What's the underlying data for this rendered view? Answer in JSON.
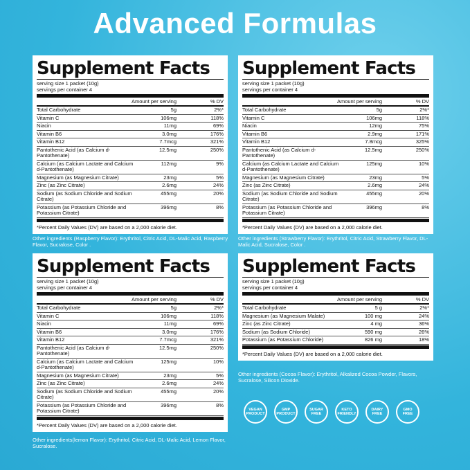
{
  "title": "Advanced Formulas",
  "panels": [
    {
      "heading": "Supplement Facts",
      "serving_size": "serving size 1 packet (10g)",
      "servings": "servings per container 4",
      "col_amount": "Amount per serving",
      "col_dv": "% DV",
      "rows": [
        {
          "name": "Total Carbohydrate",
          "amount": "5g",
          "dv": "2%*"
        },
        {
          "name": "Vitamin  C",
          "amount": "106mg",
          "dv": "118%"
        },
        {
          "name": "Niacin",
          "amount": "11mg",
          "dv": "69%"
        },
        {
          "name": "Vitamin B6",
          "amount": "3.0mg",
          "dv": "176%"
        },
        {
          "name": "Vitamin B12",
          "amount": "7.7mcg",
          "dv": "321%"
        },
        {
          "name": "Pantothenic Acid (as Calcium d-Pantothenate)",
          "amount": "12.5mg",
          "dv": "250%"
        },
        {
          "name": "Calcium (as Calcium Lactate and Calcium d-Pantothenate)",
          "amount": "112mg",
          "dv": "9%"
        },
        {
          "name": "Magnesium (as Magnesium Citrate)",
          "amount": "23mg",
          "dv": "5%"
        },
        {
          "name": "Zinc (as Zinc Citrate)",
          "amount": "2.6mg",
          "dv": "24%"
        },
        {
          "name": "Sodium (as Sodium Chloride and Sodium Citrate)",
          "amount": "455mg",
          "dv": "20%"
        },
        {
          "name": "Potassium (as Potassium Chloride and Potassium Citrate)",
          "amount": "396mg",
          "dv": "8%"
        }
      ],
      "footnote": "*Percent Daily Values (DV) are based on a 2,000 calorie diet.",
      "other": "Other ingredients (Raspberry Flavor): Erythritol, Citric Acid, DL-Malic Acid, Raspberry Flavor, Sucralose, Color ."
    },
    {
      "heading": "Supplement Facts",
      "serving_size": "serving size 1 packet (10g)",
      "servings": "servings per container 4",
      "col_amount": "Amount per serving",
      "col_dv": "% DV",
      "rows": [
        {
          "name": "Total Carbohydrate",
          "amount": "5g",
          "dv": "2%*"
        },
        {
          "name": "Vitamin  C",
          "amount": "106mg",
          "dv": "118%"
        },
        {
          "name": "Niacin",
          "amount": "12mg",
          "dv": "75%"
        },
        {
          "name": "Vitamin B6",
          "amount": "2.9mg",
          "dv": "171%"
        },
        {
          "name": "Vitamin B12",
          "amount": "7.8mcg",
          "dv": "325%"
        },
        {
          "name": "Pantothenic Acid (as Calcium d-Pantothenate)",
          "amount": "12.5mg",
          "dv": "250%"
        },
        {
          "name": "Calcium (as Calcium Lactate and Calcium d-Pantothenate)",
          "amount": "125mg",
          "dv": "10%"
        },
        {
          "name": "Magnesium (as Magnesium Citrate)",
          "amount": "23mg",
          "dv": "5%"
        },
        {
          "name": "Zinc (as Zinc Citrate)",
          "amount": "2.6mg",
          "dv": "24%"
        },
        {
          "name": "Sodium (as Sodium Chloride and Sodium Citrate)",
          "amount": "455mg",
          "dv": "20%"
        },
        {
          "name": "Potassium (as Potassium Chloride and Potassium Citrate)",
          "amount": "396mg",
          "dv": "8%"
        }
      ],
      "footnote": "*Percent Daily Values (DV) are based on a 2,000 calorie diet.",
      "other": "Other ingredients (Strawberry Flavor): Erythritol, Citric Acid, Strawberry Flavor, DL-Malic Acid, Sucralose, Color ."
    },
    {
      "heading": "Supplement Facts",
      "serving_size": "serving size 1 packet (10g)",
      "servings": "servings per container 4",
      "col_amount": "Amount per serving",
      "col_dv": "% DV",
      "rows": [
        {
          "name": "Total Carbohydrate",
          "amount": "5g",
          "dv": "2%*"
        },
        {
          "name": "Vitamin  C",
          "amount": "106mg",
          "dv": "118%"
        },
        {
          "name": "Niacin",
          "amount": "11mg",
          "dv": "69%"
        },
        {
          "name": "Vitamin B6",
          "amount": "3.0mg",
          "dv": "176%"
        },
        {
          "name": "Vitamin B12",
          "amount": "7.7mcg",
          "dv": "321%"
        },
        {
          "name": "Pantothenic Acid (as Calcium d-Pantothenate)",
          "amount": "12.5mg",
          "dv": "250%"
        },
        {
          "name": "Calcium (as Calcium Lactate and Calcium d-Pantothenate)",
          "amount": "125mg",
          "dv": "10%"
        },
        {
          "name": "Magnesium (as Magnesium Citrate)",
          "amount": "23mg",
          "dv": "5%"
        },
        {
          "name": "Zinc (as Zinc Citrate)",
          "amount": "2.6mg",
          "dv": "24%"
        },
        {
          "name": "Sodium (as Sodium Chloride and Sodium Citrate)",
          "amount": "455mg",
          "dv": "20%"
        },
        {
          "name": "Potassium (as Potassium Chloride and Potassium Citrate)",
          "amount": "396mg",
          "dv": "8%"
        }
      ],
      "footnote": "*Percent Daily Values (DV) are based on a 2,000 calorie diet.",
      "other": "Other ingredients(lemon Flavor): Erythritol, Citric Acid, DL-Malic Acid, Lemon Flavor, Sucralose."
    },
    {
      "heading": "Supplement Facts",
      "serving_size": "serving size 1 packet (10g)",
      "servings": "servings per container 4",
      "col_amount": "Amount per serving",
      "col_dv": "% DV",
      "rows": [
        {
          "name": "Total Carbohydrate",
          "amount": "5 g",
          "dv": "2%*"
        },
        {
          "name": "Magnesium (as Magnesium Malate)",
          "amount": "100 mg",
          "dv": "24%"
        },
        {
          "name": "Zinc (as Zinc Citrate)",
          "amount": "4 mg",
          "dv": "36%"
        },
        {
          "name": "Sodium (as Sodium Chloride)",
          "amount": "590 mg",
          "dv": "26%"
        },
        {
          "name": "Potassium (as Potassium Chloride)",
          "amount": "826 mg",
          "dv": "18%"
        }
      ],
      "footnote": "*Percent Daily Values (DV) are based on a 2,000 calorie diet.",
      "other": "Other ingredients (Cocoa Flavor): Erythritol, Alkalized Cocoa Powder, Flavors, Sucralose, Silicon Dioxide."
    }
  ],
  "badges": [
    "VEGAN PRODUCT",
    "GMP PRODUCT",
    "SUGAR FREE",
    "KETO FRIENDLY",
    "DAIRY FREE",
    "GMO FREE"
  ]
}
